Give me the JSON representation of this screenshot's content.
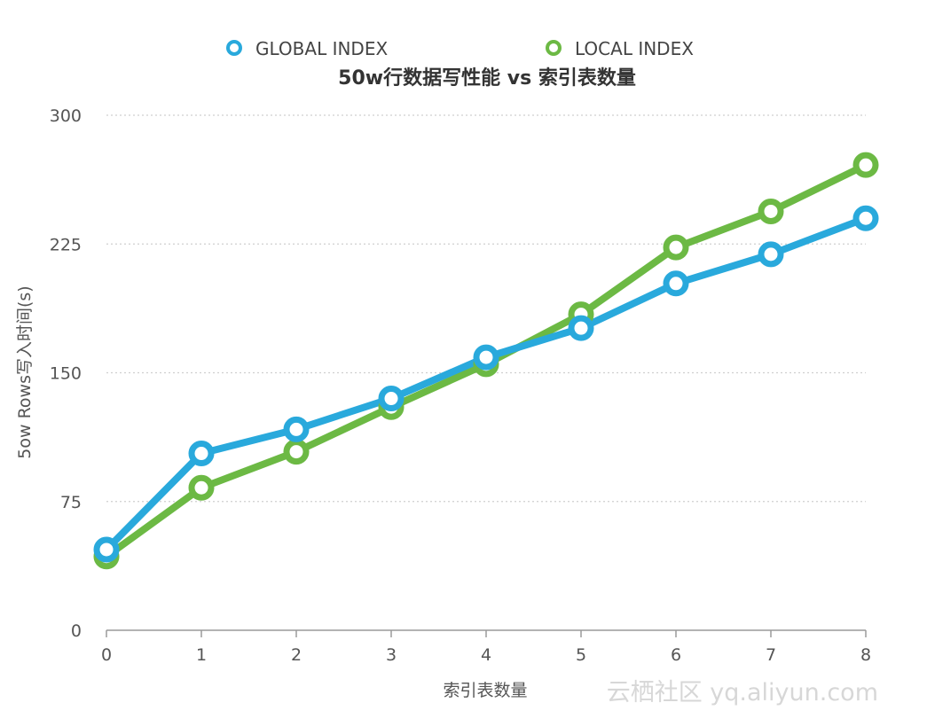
{
  "chart_data": {
    "type": "line",
    "title": "50w行数据写性能 vs 索引表数量",
    "xlabel": "索引表数量",
    "ylabel": "5ow Rows写入时间(s)",
    "categories": [
      "0",
      "1",
      "2",
      "3",
      "4",
      "5",
      "6",
      "7",
      "8"
    ],
    "x": [
      0,
      1,
      2,
      3,
      4,
      5,
      6,
      7,
      8
    ],
    "ylim": [
      0,
      300
    ],
    "yticks": [
      0,
      75,
      150,
      225,
      300
    ],
    "ytick_labels": [
      "0",
      "75",
      "150",
      "225",
      "300"
    ],
    "grid": true,
    "legend_position": "top",
    "series": [
      {
        "name": "GLOBAL INDEX",
        "color": "#29a9dc",
        "values": [
          47,
          103,
          117,
          135,
          159,
          176,
          202,
          219,
          240
        ]
      },
      {
        "name": "LOCAL INDEX",
        "color": "#6cb944",
        "values": [
          43,
          83,
          104,
          130,
          155,
          184,
          223,
          244,
          271
        ]
      }
    ]
  },
  "watermark": "云栖社区 yq.aliyun.com"
}
